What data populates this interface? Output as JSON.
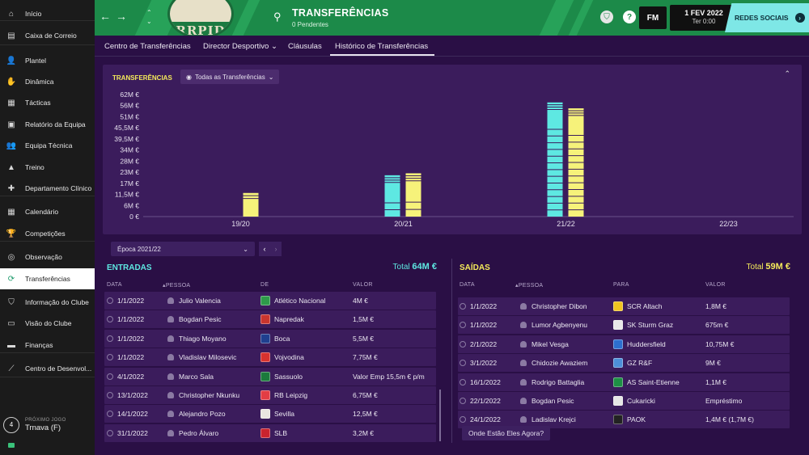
{
  "sidebar": {
    "items": [
      {
        "label": "Início",
        "icon": "home-icon",
        "glyph": "⌂"
      },
      {
        "label": "Caixa de Correio",
        "icon": "inbox-icon",
        "glyph": "▤"
      },
      {
        "label": "Plantel",
        "icon": "squad-icon",
        "glyph": "👤"
      },
      {
        "label": "Dinâmica",
        "icon": "dynamics-icon",
        "glyph": "✋"
      },
      {
        "label": "Tácticas",
        "icon": "tactics-icon",
        "glyph": "▦"
      },
      {
        "label": "Relatório da Equipa",
        "icon": "report-icon",
        "glyph": "▣"
      },
      {
        "label": "Equipa Técnica",
        "icon": "staff-icon",
        "glyph": "👥"
      },
      {
        "label": "Treino",
        "icon": "training-icon",
        "glyph": "▲"
      },
      {
        "label": "Departamento Clínico",
        "icon": "medical-icon",
        "glyph": "✚"
      },
      {
        "label": "Calendário",
        "icon": "calendar-icon",
        "glyph": "▦"
      },
      {
        "label": "Competições",
        "icon": "trophy-icon",
        "glyph": "🏆"
      },
      {
        "label": "Observação",
        "icon": "scouting-icon",
        "glyph": "◎"
      },
      {
        "label": "Transferências",
        "icon": "transfers-icon",
        "glyph": "⟳"
      },
      {
        "label": "Informação do Clube",
        "icon": "club-info-icon",
        "glyph": "⛉"
      },
      {
        "label": "Visão do Clube",
        "icon": "club-vision-icon",
        "glyph": "▭"
      },
      {
        "label": "Finanças",
        "icon": "finances-icon",
        "glyph": "▬"
      },
      {
        "label": "Centro de Desenvol...",
        "icon": "development-icon",
        "glyph": "⟋"
      }
    ],
    "next_game": {
      "label": "PRÓXIMO JOGO",
      "days": "4",
      "value": "Trnava (F)"
    }
  },
  "header": {
    "title": "TRANSFERÊNCIAS",
    "subtitle": "0 Pendentes",
    "crest_text": "RRPID",
    "logo": "FM",
    "date": "1 FEV 2022",
    "time": "Ter 0:00",
    "social_label": "REDES SOCIAIS",
    "colors": {
      "header": "#1c8a49",
      "social": "#7ee7e6"
    }
  },
  "tabs": [
    {
      "label": "Centro de Transferências"
    },
    {
      "label": "Director Desportivo ⌄"
    },
    {
      "label": "Cláusulas"
    },
    {
      "label": "Histórico de Transferências"
    }
  ],
  "chart_data": {
    "type": "bar",
    "title": "TRANSFERÊNCIAS",
    "filter_label": "Todas as Transferências",
    "y_ticks": [
      "62M €",
      "56M €",
      "51M €",
      "45,5M €",
      "39,5M €",
      "34M €",
      "28M €",
      "23M €",
      "17M €",
      "11,5M €",
      "6M €",
      "0 €"
    ],
    "ylim": [
      0,
      62
    ],
    "categories": [
      "19/20",
      "20/21",
      "21/22",
      "22/23"
    ],
    "series": [
      {
        "name": "Entradas",
        "color": "#5ee8e2",
        "values": [
          0,
          21,
          58,
          0
        ]
      },
      {
        "name": "Saídas",
        "color": "#f6f27a",
        "values": [
          12,
          22,
          55,
          0
        ]
      }
    ]
  },
  "season": {
    "label": "Época 2021/22"
  },
  "entradas": {
    "title": "ENTRADAS",
    "total_label": "Total",
    "total_value": "64M €",
    "headers": [
      "DATA",
      "▴PESSOA",
      "DE",
      "VALOR"
    ],
    "rows": [
      {
        "date": "1/1/2022",
        "person": "Julio Valencia",
        "club": "Atlético Nacional",
        "value": "4M €",
        "badge": "#2e9b4a"
      },
      {
        "date": "1/1/2022",
        "person": "Bogdan Pesic",
        "club": "Napredak",
        "value": "1,5M €",
        "badge": "#c9352e"
      },
      {
        "date": "1/1/2022",
        "person": "Thiago Moyano",
        "club": "Boca",
        "value": "5,5M €",
        "badge": "#1f3f8f"
      },
      {
        "date": "1/1/2022",
        "person": "Vladislav Milosevic",
        "club": "Vojvodina",
        "value": "7,75M €",
        "badge": "#d8322e"
      },
      {
        "date": "4/1/2022",
        "person": "Marco Sala",
        "club": "Sassuolo",
        "value": "Valor Emp 15,5m € p/m",
        "badge": "#1b7a3c"
      },
      {
        "date": "13/1/2022",
        "person": "Christopher Nkunku",
        "club": "RB Leipzig",
        "value": "6,75M €",
        "badge": "#e23d44"
      },
      {
        "date": "14/1/2022",
        "person": "Alejandro Pozo",
        "club": "Sevilla",
        "value": "12,5M €",
        "badge": "#e9e5e0"
      },
      {
        "date": "31/1/2022",
        "person": "Pedro Álvaro",
        "club": "SLB",
        "value": "3,2M €",
        "badge": "#c9232e"
      }
    ]
  },
  "saidas": {
    "title": "SAÍDAS",
    "total_label": "Total",
    "total_value": "59M €",
    "headers": [
      "DATA",
      "▴PESSOA",
      "PARA",
      "VALOR"
    ],
    "rows": [
      {
        "date": "1/1/2022",
        "person": "Christopher Dibon",
        "club": "SCR Altach",
        "value": "1,8M €",
        "badge": "#f0c420"
      },
      {
        "date": "1/1/2022",
        "person": "Lumor Agbenyenu",
        "club": "SK Sturm Graz",
        "value": "675m €",
        "badge": "#e8e8e8"
      },
      {
        "date": "2/1/2022",
        "person": "Mikel Vesga",
        "club": "Huddersfield",
        "value": "10,75M €",
        "badge": "#2d6fcf"
      },
      {
        "date": "3/1/2022",
        "person": "Chidozie Awaziem",
        "club": "GZ R&F",
        "value": "9M €",
        "badge": "#4d8fd8"
      },
      {
        "date": "16/1/2022",
        "person": "Rodrigo Battaglia",
        "club": "AS Saint-Etienne",
        "value": "1,1M €",
        "badge": "#1e8f45"
      },
      {
        "date": "22/1/2022",
        "person": "Bogdan Pesic",
        "club": "Cukaricki",
        "value": "Empréstimo",
        "badge": "#e6e6e6"
      },
      {
        "date": "24/1/2022",
        "person": "Ladislav Krejci",
        "club": "PAOK",
        "value": "1,4M € (1,7M €)",
        "badge": "#222222"
      }
    ],
    "where_button": "Onde Estão Eles Agora?"
  }
}
